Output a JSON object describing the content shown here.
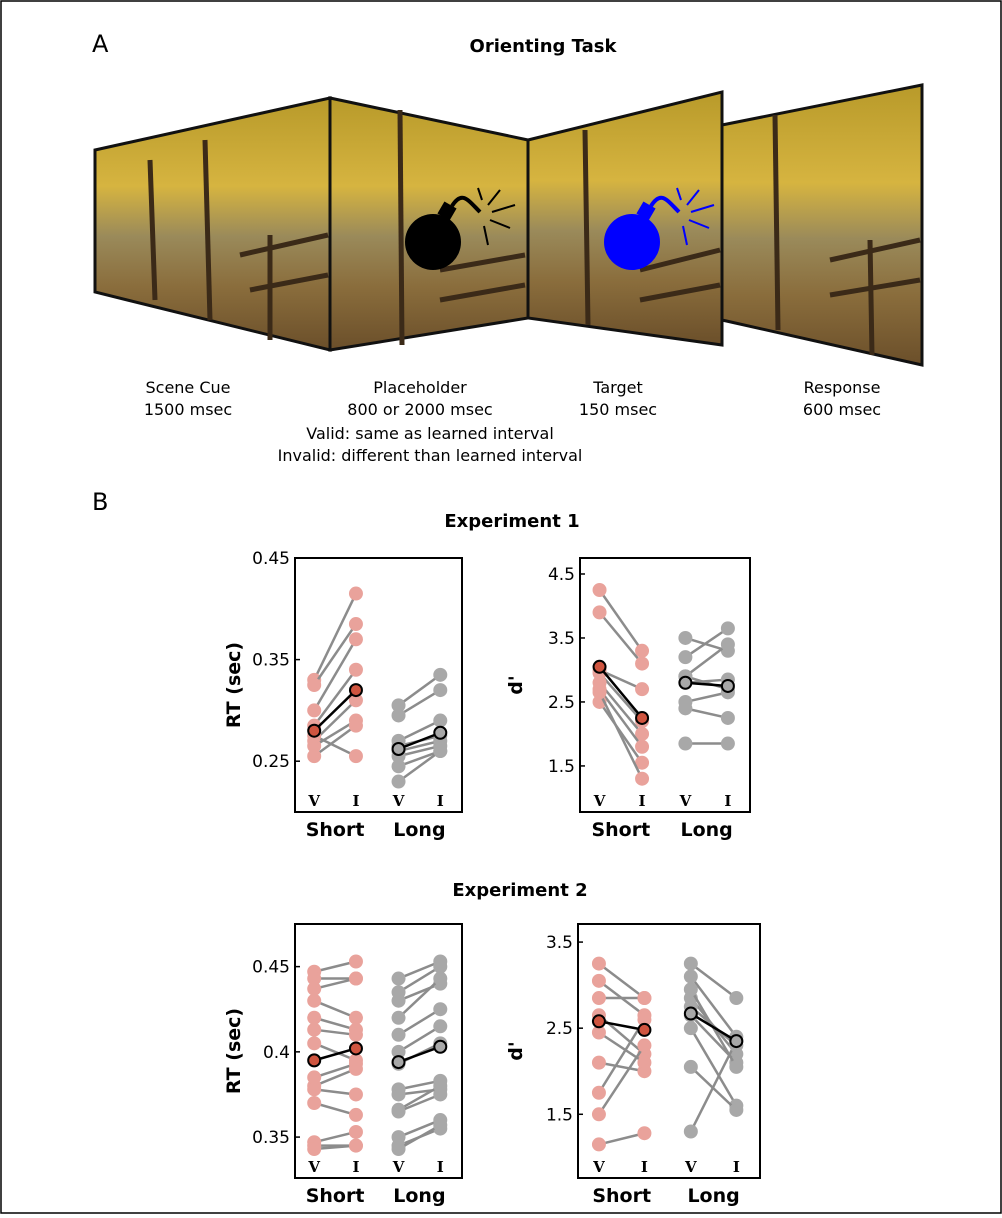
{
  "panel_a": {
    "label": "A",
    "title": "Orienting Task",
    "stages": [
      {
        "name": "Scene Cue",
        "duration": "1500 msec"
      },
      {
        "name": "Placeholder",
        "duration": "800 or 2000 msec"
      },
      {
        "name": "Target",
        "duration": "150 msec"
      },
      {
        "name": "Response",
        "duration": "600 msec"
      }
    ],
    "notes": [
      "Valid: same as learned interval",
      "Invalid: different than learned interval"
    ]
  },
  "panel_b": {
    "label": "B",
    "experiments": [
      "Experiment 1",
      "Experiment 2"
    ]
  },
  "chart_data": [
    {
      "type": "paired",
      "ylabel": "RT (sec)",
      "groups": [
        "Short",
        "Long"
      ],
      "categories": [
        "V",
        "I",
        "V",
        "I"
      ],
      "ylim": [
        0.2,
        0.45
      ],
      "yticks": [
        0.25,
        0.35,
        0.45
      ],
      "colors": [
        "#e9a29b",
        "#a8a8a8"
      ],
      "mean_colors": [
        "#cf5540",
        "#a8a8a8"
      ],
      "subjects": [
        [
          0.33,
          0.415,
          0.305,
          0.335
        ],
        [
          0.325,
          0.385,
          0.295,
          0.32
        ],
        [
          0.3,
          0.37,
          0.27,
          0.29
        ],
        [
          0.285,
          0.34,
          0.265,
          0.275
        ],
        [
          0.27,
          0.31,
          0.26,
          0.27
        ],
        [
          0.265,
          0.29,
          0.255,
          0.265
        ],
        [
          0.255,
          0.285,
          0.245,
          0.26
        ],
        [
          0.275,
          0.255,
          0.23,
          0.26
        ]
      ],
      "mean": [
        0.28,
        0.32,
        0.262,
        0.278
      ]
    },
    {
      "type": "paired",
      "ylabel": "d'",
      "groups": [
        "Short",
        "Long"
      ],
      "categories": [
        "V",
        "I",
        "V",
        "I"
      ],
      "ylim": [
        0.78,
        4.75
      ],
      "yticks": [
        1.5,
        2.5,
        3.5,
        4.5
      ],
      "colors": [
        "#e9a29b",
        "#a8a8a8"
      ],
      "mean_colors": [
        "#cf5540",
        "#a8a8a8"
      ],
      "subjects": [
        [
          4.25,
          3.3,
          3.5,
          3.3
        ],
        [
          3.9,
          3.1,
          3.2,
          3.65
        ],
        [
          3.0,
          2.7,
          2.9,
          2.7
        ],
        [
          2.95,
          2.2,
          2.8,
          2.85
        ],
        [
          2.8,
          2.0,
          2.5,
          2.65
        ],
        [
          2.7,
          1.8,
          2.4,
          2.25
        ],
        [
          2.5,
          1.55,
          2.9,
          3.4
        ],
        [
          2.65,
          1.3,
          1.85,
          1.85
        ]
      ],
      "mean": [
        3.05,
        2.25,
        2.8,
        2.75
      ]
    },
    {
      "type": "paired",
      "ylabel": "RT (sec)",
      "groups": [
        "Short",
        "Long"
      ],
      "categories": [
        "V",
        "I",
        "V",
        "I"
      ],
      "ylim": [
        0.326,
        0.475
      ],
      "yticks": [
        0.35,
        0.4,
        0.45
      ],
      "colors": [
        "#e9a29b",
        "#a8a8a8"
      ],
      "mean_colors": [
        "#cf5540",
        "#a8a8a8"
      ],
      "subjects": [
        [
          0.447,
          0.453,
          0.443,
          0.453
        ],
        [
          0.443,
          0.443,
          0.435,
          0.45
        ],
        [
          0.437,
          0.443,
          0.43,
          0.44
        ],
        [
          0.43,
          0.42,
          0.42,
          0.443
        ],
        [
          0.42,
          0.413,
          0.41,
          0.425
        ],
        [
          0.413,
          0.41,
          0.4,
          0.415
        ],
        [
          0.405,
          0.395,
          0.393,
          0.405
        ],
        [
          0.385,
          0.393,
          0.378,
          0.383
        ],
        [
          0.38,
          0.39,
          0.375,
          0.378
        ],
        [
          0.378,
          0.375,
          0.366,
          0.38
        ],
        [
          0.37,
          0.363,
          0.365,
          0.375
        ],
        [
          0.347,
          0.353,
          0.35,
          0.36
        ],
        [
          0.345,
          0.345,
          0.345,
          0.355
        ],
        [
          0.343,
          0.345,
          0.343,
          0.357
        ]
      ],
      "mean": [
        0.395,
        0.402,
        0.394,
        0.403
      ]
    },
    {
      "type": "paired",
      "ylabel": "d'",
      "groups": [
        "Short",
        "Long"
      ],
      "categories": [
        "V",
        "I",
        "V",
        "I"
      ],
      "ylim": [
        0.76,
        3.71
      ],
      "yticks": [
        1.5,
        2.5,
        3.5
      ],
      "colors": [
        "#e9a29b",
        "#a8a8a8"
      ],
      "mean_colors": [
        "#cf5540",
        "#a8a8a8"
      ],
      "subjects": [
        [
          3.25,
          2.85,
          3.25,
          2.85
        ],
        [
          3.05,
          2.65,
          3.1,
          2.4
        ],
        [
          2.85,
          2.85,
          2.85,
          2.2
        ],
        [
          2.65,
          2.2,
          2.65,
          2.1
        ],
        [
          2.45,
          2.1,
          2.5,
          1.6
        ],
        [
          2.1,
          2.0,
          2.05,
          1.55
        ],
        [
          1.75,
          2.6,
          1.3,
          2.35
        ],
        [
          1.5,
          2.3,
          2.75,
          2.3
        ],
        [
          1.15,
          1.28,
          2.95,
          2.05
        ]
      ],
      "mean": [
        2.58,
        2.48,
        2.67,
        2.35
      ]
    }
  ]
}
